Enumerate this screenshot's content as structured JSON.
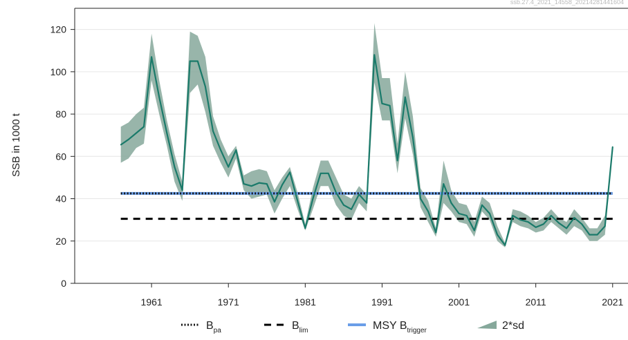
{
  "watermark": "ssb.27.4_2021_14558_20214281441604",
  "chart_data": {
    "type": "line",
    "ylabel": "SSB in 1000 t",
    "xlabel": "",
    "xlim": [
      1951,
      2023
    ],
    "ylim": [
      0,
      130
    ],
    "x_ticks": [
      1961,
      1971,
      1981,
      1991,
      2001,
      2011,
      2021
    ],
    "y_ticks": [
      0,
      20,
      40,
      60,
      80,
      100,
      120
    ],
    "grid": "horizontal",
    "legend_position": "bottom",
    "colors": {
      "ssb_line": "#1a7a6a",
      "band": "#86a89b",
      "bpa": "#111111",
      "blim": "#000000",
      "msy": "#6a9ee8",
      "grid": "#e6e6e6"
    },
    "x": [
      1957,
      1958,
      1959,
      1960,
      1961,
      1962,
      1963,
      1964,
      1965,
      1966,
      1967,
      1968,
      1969,
      1970,
      1971,
      1972,
      1973,
      1974,
      1975,
      1976,
      1977,
      1978,
      1979,
      1980,
      1981,
      1982,
      1983,
      1984,
      1985,
      1986,
      1987,
      1988,
      1989,
      1990,
      1991,
      1992,
      1993,
      1994,
      1995,
      1996,
      1997,
      1998,
      1999,
      2000,
      2001,
      2002,
      2003,
      2004,
      2005,
      2006,
      2007,
      2008,
      2009,
      2010,
      2011,
      2012,
      2013,
      2014,
      2015,
      2016,
      2017,
      2018,
      2019,
      2020,
      2021
    ],
    "ssb": [
      65.5,
      68,
      71,
      74,
      107,
      88,
      71,
      55,
      44,
      105,
      105,
      93,
      72,
      63,
      55,
      63,
      47,
      46,
      47.5,
      47,
      38.5,
      46.5,
      52.5,
      39,
      26,
      40,
      52,
      52,
      43,
      37,
      35,
      42,
      38,
      108,
      85,
      84,
      58,
      88,
      69,
      40,
      34,
      24,
      47,
      38,
      33,
      32,
      25,
      37,
      33,
      23,
      18,
      32,
      30,
      29,
      26.5,
      28,
      32,
      28.5,
      26,
      31,
      28,
      23,
      23,
      27,
      64.5
    ],
    "sd_band": {
      "upper": [
        74,
        76,
        80,
        83,
        118,
        96,
        77,
        61,
        48,
        119,
        117,
        107,
        79,
        68,
        60,
        65,
        51,
        53,
        54,
        53,
        44,
        50,
        55,
        43,
        28,
        45,
        58,
        58,
        50,
        42,
        40,
        46,
        42,
        123,
        97,
        97,
        66,
        100,
        79,
        45,
        39,
        26,
        58,
        44,
        38,
        37,
        29,
        41,
        38,
        27,
        19,
        35,
        34,
        32,
        29,
        31,
        35,
        31,
        29,
        35,
        31,
        26,
        26,
        32,
        65
      ],
      "lower": [
        57,
        59,
        64,
        66,
        96,
        80,
        65,
        48,
        39,
        90,
        94,
        81,
        65,
        57,
        50,
        59,
        44,
        40,
        41,
        42,
        33,
        40,
        46,
        35,
        25,
        35,
        46,
        46,
        37,
        32,
        30,
        38,
        34,
        95,
        77,
        77,
        52,
        78,
        61,
        36,
        29,
        22,
        38,
        34,
        29,
        28,
        22,
        34,
        30,
        20,
        17,
        29,
        27,
        26,
        24,
        25,
        29,
        26,
        23,
        27,
        25,
        20,
        20,
        23,
        64
      ]
    },
    "bpa": 42.5,
    "blim": 30.5,
    "msy_btrigger": 42.5,
    "legend": [
      {
        "key": "bpa",
        "label": "B",
        "sub": "pa"
      },
      {
        "key": "blim",
        "label": "B",
        "sub": "lim"
      },
      {
        "key": "msy",
        "label": "MSY B",
        "sub": "trigger"
      },
      {
        "key": "band",
        "label": "2*sd",
        "sub": ""
      }
    ]
  }
}
